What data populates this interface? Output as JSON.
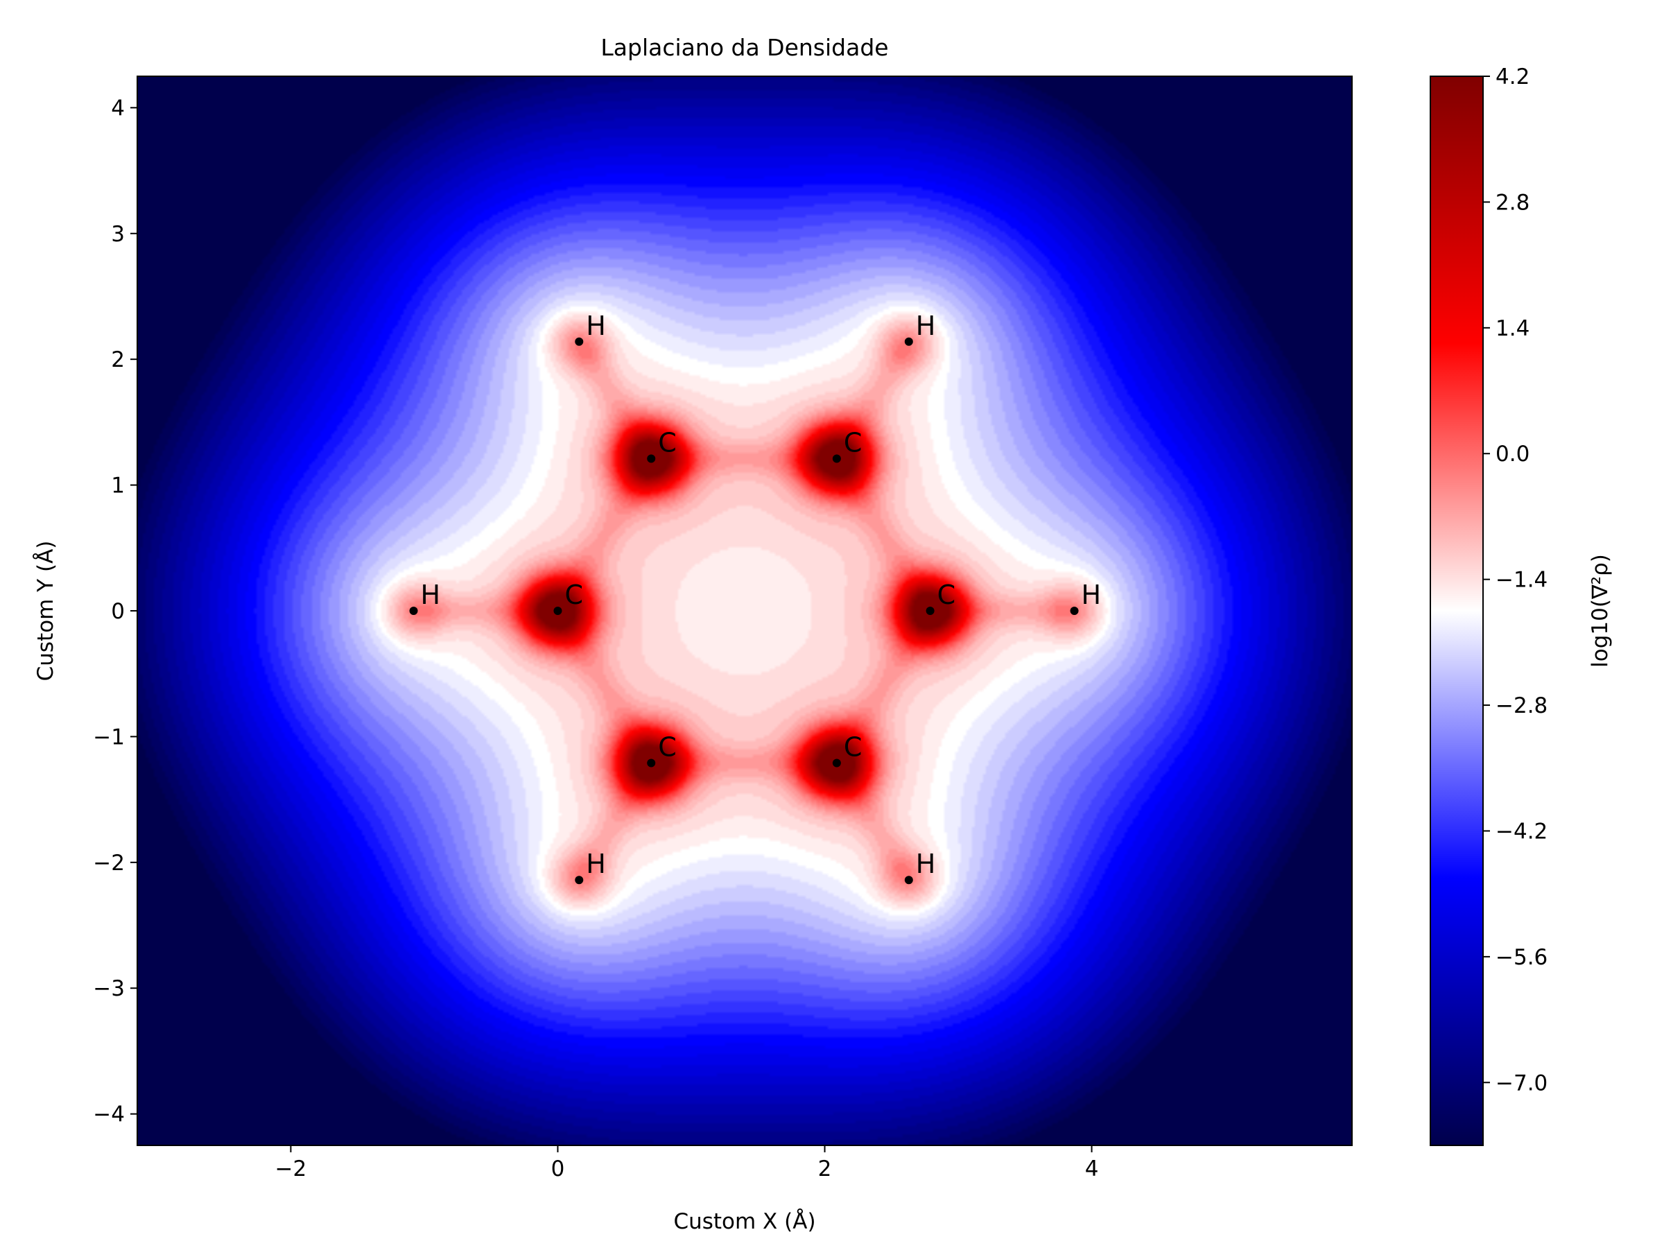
{
  "chart_data": {
    "type": "heatmap",
    "title": "Laplaciano da Densidade",
    "xlabel": "Custom X (Å)",
    "ylabel": "Custom Y (Å)",
    "xlim": [
      -3.15,
      5.95
    ],
    "ylim": [
      -4.25,
      4.25
    ],
    "x_ticks": [
      -2,
      0,
      2,
      4
    ],
    "y_ticks": [
      -4,
      -3,
      -2,
      -1,
      0,
      1,
      2,
      3,
      4
    ],
    "colormap": "seismic",
    "colorbar": {
      "label": "log10(∇²ρ)",
      "range": [
        -7.7,
        4.2
      ],
      "ticks": [
        4.2,
        2.8,
        1.4,
        0.0,
        -1.4,
        -2.8,
        -4.2,
        -5.6,
        -7.0
      ],
      "tick_labels": [
        "4.2",
        "2.8",
        "1.4",
        "0.0",
        "−1.4",
        "−2.8",
        "−4.2",
        "−5.6",
        "−7.0"
      ]
    },
    "atoms": [
      {
        "element": "C",
        "x": 0.0,
        "y": 0.0
      },
      {
        "element": "C",
        "x": 0.7,
        "y": 1.21
      },
      {
        "element": "C",
        "x": 2.09,
        "y": 1.21
      },
      {
        "element": "C",
        "x": 2.79,
        "y": 0.0
      },
      {
        "element": "C",
        "x": 2.09,
        "y": -1.21
      },
      {
        "element": "C",
        "x": 0.7,
        "y": -1.21
      },
      {
        "element": "H",
        "x": -1.08,
        "y": 0.0
      },
      {
        "element": "H",
        "x": 0.16,
        "y": 2.14
      },
      {
        "element": "H",
        "x": 2.63,
        "y": 2.14
      },
      {
        "element": "H",
        "x": 3.87,
        "y": 0.0
      },
      {
        "element": "H",
        "x": 2.63,
        "y": -2.14
      },
      {
        "element": "H",
        "x": 0.16,
        "y": -2.14
      }
    ],
    "grid": false,
    "legend": "none"
  }
}
